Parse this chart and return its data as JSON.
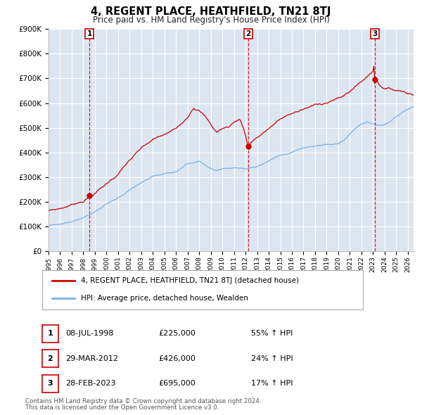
{
  "title": "4, REGENT PLACE, HEATHFIELD, TN21 8TJ",
  "subtitle": "Price paid vs. HM Land Registry's House Price Index (HPI)",
  "ylim": [
    0,
    900000
  ],
  "yticks": [
    0,
    100000,
    200000,
    300000,
    400000,
    500000,
    600000,
    700000,
    800000,
    900000
  ],
  "ytick_labels": [
    "£0",
    "£100K",
    "£200K",
    "£300K",
    "£400K",
    "£500K",
    "£600K",
    "£700K",
    "£800K",
    "£900K"
  ],
  "hpi_color": "#7ab0e0",
  "price_color": "#cc0000",
  "bg_color": "#dce6f1",
  "grid_color": "#ffffff",
  "sale_dates": [
    1998.52,
    2012.24,
    2023.16
  ],
  "sale_prices": [
    225000,
    426000,
    695000
  ],
  "sale_labels": [
    "1",
    "2",
    "3"
  ],
  "sale_info": [
    [
      "1",
      "08-JUL-1998",
      "£225,000",
      "55% ↑ HPI"
    ],
    [
      "2",
      "29-MAR-2012",
      "£426,000",
      "24% ↑ HPI"
    ],
    [
      "3",
      "28-FEB-2023",
      "£695,000",
      "17% ↑ HPI"
    ]
  ],
  "legend_line1": "4, REGENT PLACE, HEATHFIELD, TN21 8TJ (detached house)",
  "legend_line2": "HPI: Average price, detached house, Wealden",
  "footer1": "Contains HM Land Registry data © Crown copyright and database right 2024.",
  "footer2": "This data is licensed under the Open Government Licence v3.0.",
  "xstart": 1995.0,
  "xend": 2026.5
}
